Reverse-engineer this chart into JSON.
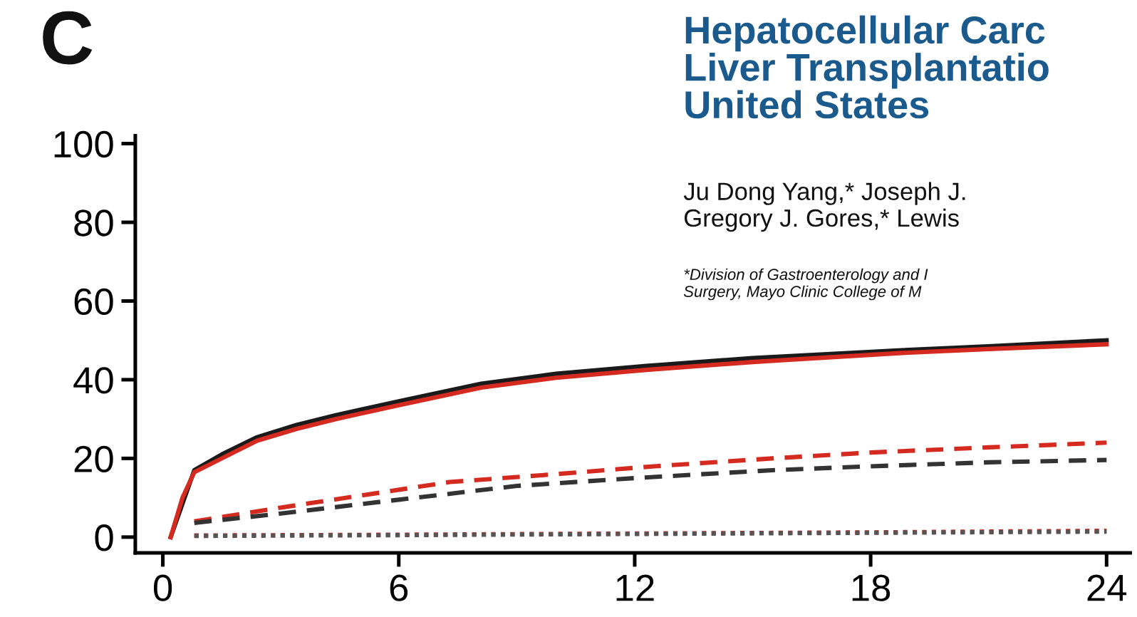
{
  "chart_data": {
    "type": "line",
    "xlim": [
      -0.7,
      24.6
    ],
    "ylim": [
      -4,
      102
    ],
    "xticks": [
      0,
      6,
      12,
      18,
      24
    ],
    "yticks": [
      0,
      20,
      40,
      60,
      80,
      100
    ],
    "grid": false,
    "legend": false,
    "annotations": [
      "C",
      "Hepatocellular Carc\nLiver Transplantatio\nUnited States",
      "Ju Dong Yang,* Joseph J.\nGregory J. Gores,* Lewis",
      "*Division of Gastroenterology and I\nSurgery, Mayo Clinic College of M"
    ],
    "series": [
      {
        "color": "#1a1a1a",
        "line_style": "solid",
        "x": [
          0.2,
          0.8,
          1.5,
          2.4,
          3.4,
          4.4,
          6,
          8.1,
          10,
          12.3,
          15,
          18.8,
          21,
          24
        ],
        "values": [
          0,
          17,
          21,
          25.4,
          28.5,
          31,
          34.5,
          39,
          41.5,
          43.5,
          45.5,
          47.5,
          48.5,
          50
        ]
      },
      {
        "color": "#d42a20",
        "line_style": "solid",
        "x": [
          0.2,
          0.5,
          0.8,
          1.5,
          2.4,
          3.4,
          4.4,
          6,
          8.1,
          10,
          12.3,
          15,
          18.8,
          21,
          24
        ],
        "values": [
          0,
          10,
          16.5,
          20,
          24.5,
          27.5,
          30,
          33.5,
          38,
          40.5,
          42.5,
          44.5,
          46.8,
          47.8,
          49
        ]
      },
      {
        "color": "#d42a20",
        "line_style": "dashed",
        "x": [
          0.8,
          3,
          5,
          7.3,
          10,
          12.5,
          15.5,
          18,
          21,
          24
        ],
        "values": [
          4,
          7.5,
          10.5,
          14,
          16,
          18,
          20,
          21.5,
          22.8,
          24
        ]
      },
      {
        "color": "#333333",
        "line_style": "dashed",
        "x": [
          0.8,
          3,
          6,
          9,
          12,
          15.5,
          18,
          21,
          24
        ],
        "values": [
          3.6,
          6,
          9.5,
          13,
          15,
          17,
          18,
          19,
          19.6
        ]
      },
      {
        "color": "#d42a20",
        "line_style": "dotted",
        "x": [
          0.8,
          6,
          12,
          18,
          24
        ],
        "values": [
          0.4,
          0.6,
          0.9,
          1.2,
          1.6
        ]
      },
      {
        "color": "#555555",
        "line_style": "dotted",
        "x": [
          0.8,
          6,
          12,
          18,
          24
        ],
        "values": [
          0.3,
          0.5,
          0.8,
          1.1,
          1.4
        ]
      }
    ]
  }
}
